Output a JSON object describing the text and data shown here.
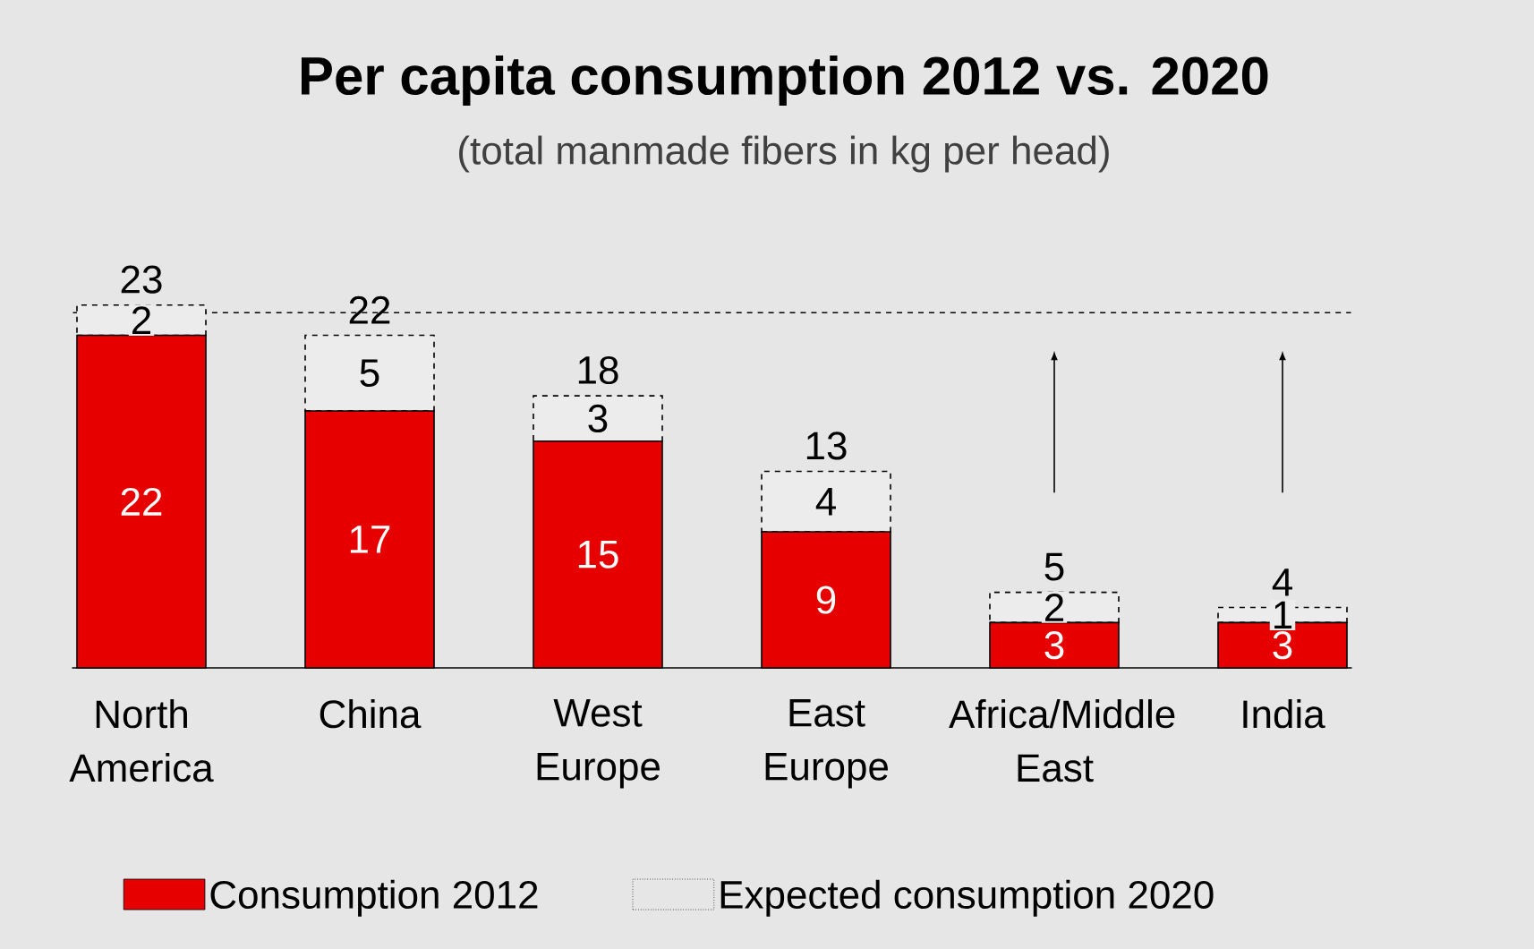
{
  "chart_data": {
    "type": "bar",
    "title": "Per capita consumption 2012 vs. 2020",
    "subtitle": "(total manmade fibers in kg per head)",
    "categories": [
      "North America",
      "China",
      "West Europe",
      "East Europe",
      "Africa/Middle East",
      "India"
    ],
    "stacked": true,
    "series": [
      {
        "name": "Consumption 2012",
        "color": "#e60000",
        "values": [
          22,
          17,
          15,
          9,
          3,
          3
        ]
      },
      {
        "name": "Expected consumption 2020",
        "color": "#ececec",
        "line_style": "dashed",
        "values": [
          2,
          5,
          3,
          4,
          2,
          1
        ]
      }
    ],
    "totals": [
      "23",
      "22",
      "18",
      "13",
      "5",
      "4"
    ],
    "data_labels": true,
    "ref_lines": [
      {
        "axis": "y",
        "value": 23.5,
        "color": "#000000",
        "line_style": "dashed"
      }
    ],
    "legend": "bottom"
  }
}
